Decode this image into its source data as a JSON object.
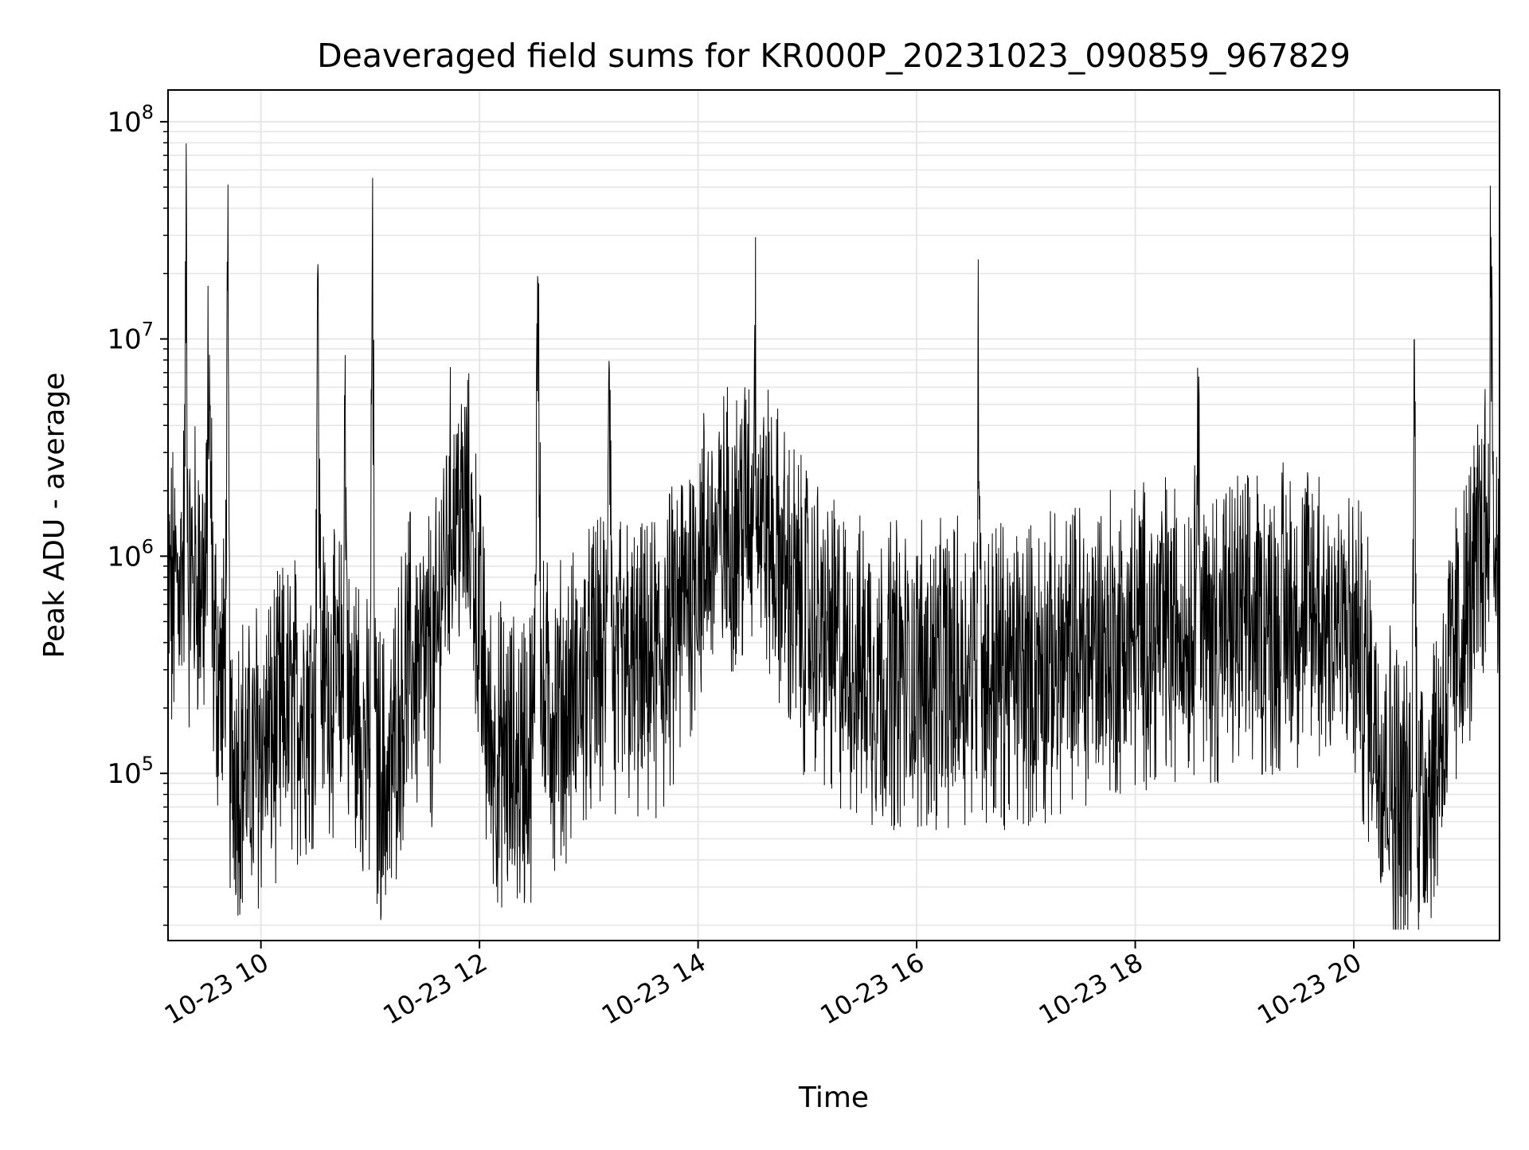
{
  "chart_data": {
    "type": "line",
    "title": "Deaveraged field sums for KR000P_20231023_090859_967829",
    "xlabel": "Time",
    "ylabel": "Peak ADU - average",
    "x_axis": {
      "kind": "datetime",
      "range": [
        "2023-10-23 09:09",
        "2023-10-23 21:20"
      ],
      "ticks": [
        {
          "value": "2023-10-23 10:00",
          "label": "10-23 10"
        },
        {
          "value": "2023-10-23 12:00",
          "label": "10-23 12"
        },
        {
          "value": "2023-10-23 14:00",
          "label": "10-23 14"
        },
        {
          "value": "2023-10-23 16:00",
          "label": "10-23 16"
        },
        {
          "value": "2023-10-23 18:00",
          "label": "10-23 18"
        },
        {
          "value": "2023-10-23 20:00",
          "label": "10-23 20"
        }
      ],
      "tick_label_rotation": 30
    },
    "y_axis": {
      "scale": "log",
      "range": [
        17000,
        140000000
      ],
      "ticks": [
        {
          "value": 100000,
          "base": "10",
          "exp": "5"
        },
        {
          "value": 1000000,
          "base": "10",
          "exp": "6"
        },
        {
          "value": 10000000,
          "base": "10",
          "exp": "7"
        },
        {
          "value": 100000000,
          "base": "10",
          "exp": "8"
        }
      ]
    },
    "grid": true,
    "legend": "none",
    "line_color": "#000000",
    "grid_color": "#e6e6e6",
    "series": [
      {
        "x": [
          "2023-10-23 09:10",
          "2023-10-23 09:18",
          "2023-10-23 09:19",
          "2023-10-23 09:20",
          "2023-10-23 09:30",
          "2023-10-23 09:31",
          "2023-10-23 09:34",
          "2023-10-23 09:40",
          "2023-10-23 09:42",
          "2023-10-23 09:43",
          "2023-10-23 09:55",
          "2023-10-23 10:10",
          "2023-10-23 10:30",
          "2023-10-23 10:31",
          "2023-10-23 10:33",
          "2023-10-23 10:45",
          "2023-10-23 10:46",
          "2023-10-23 10:48",
          "2023-10-23 10:55",
          "2023-10-23 11:00",
          "2023-10-23 11:01",
          "2023-10-23 11:03",
          "2023-10-23 11:10",
          "2023-10-23 11:20",
          "2023-10-23 11:35",
          "2023-10-23 11:40",
          "2023-10-23 11:45",
          "2023-10-23 11:55",
          "2023-10-23 12:05",
          "2023-10-23 12:20",
          "2023-10-23 12:30",
          "2023-10-23 12:32",
          "2023-10-23 12:34",
          "2023-10-23 12:45",
          "2023-10-23 13:00",
          "2023-10-23 13:10",
          "2023-10-23 13:11",
          "2023-10-23 13:13",
          "2023-10-23 13:30",
          "2023-10-23 13:40",
          "2023-10-23 14:00",
          "2023-10-23 14:20",
          "2023-10-23 14:30",
          "2023-10-23 14:31",
          "2023-10-23 14:33",
          "2023-10-23 14:45",
          "2023-10-23 15:00",
          "2023-10-23 15:20",
          "2023-10-23 15:40",
          "2023-10-23 16:00",
          "2023-10-23 16:20",
          "2023-10-23 16:33",
          "2023-10-23 16:34",
          "2023-10-23 16:36",
          "2023-10-23 17:00",
          "2023-10-23 17:20",
          "2023-10-23 17:40",
          "2023-10-23 18:00",
          "2023-10-23 18:20",
          "2023-10-23 18:33",
          "2023-10-23 18:34",
          "2023-10-23 18:36",
          "2023-10-23 19:00",
          "2023-10-23 19:20",
          "2023-10-23 19:40",
          "2023-10-23 20:00",
          "2023-10-23 20:15",
          "2023-10-23 20:25",
          "2023-10-23 20:32",
          "2023-10-23 20:33",
          "2023-10-23 20:35",
          "2023-10-23 20:45",
          "2023-10-23 20:55",
          "2023-10-23 21:05",
          "2023-10-23 21:10",
          "2023-10-23 21:14",
          "2023-10-23 21:15",
          "2023-10-23 21:17",
          "2023-10-23 21:20"
        ],
        "y": [
          700000,
          1000000,
          47000000,
          900000,
          800000,
          7700000,
          400000,
          250000,
          13000000,
          120000,
          120000,
          180000,
          250000,
          21000000,
          300000,
          250000,
          5900000,
          200000,
          180000,
          120000,
          30000000,
          110000,
          90000,
          350000,
          300000,
          900000,
          1800000,
          1500000,
          150000,
          110000,
          150000,
          31000000,
          200000,
          200000,
          300000,
          350000,
          20000000,
          300000,
          300000,
          350000,
          1000000,
          1500000,
          1600000,
          11000000,
          1800000,
          1000000,
          500000,
          350000,
          300000,
          300000,
          300000,
          350000,
          9300000,
          300000,
          300000,
          350000,
          400000,
          450000,
          500000,
          550000,
          10000000,
          500000,
          500000,
          550000,
          600000,
          450000,
          150000,
          80000,
          70000,
          9300000,
          80000,
          130000,
          350000,
          700000,
          1300000,
          1500000,
          23000000,
          1200000,
          1000000
        ]
      }
    ]
  }
}
